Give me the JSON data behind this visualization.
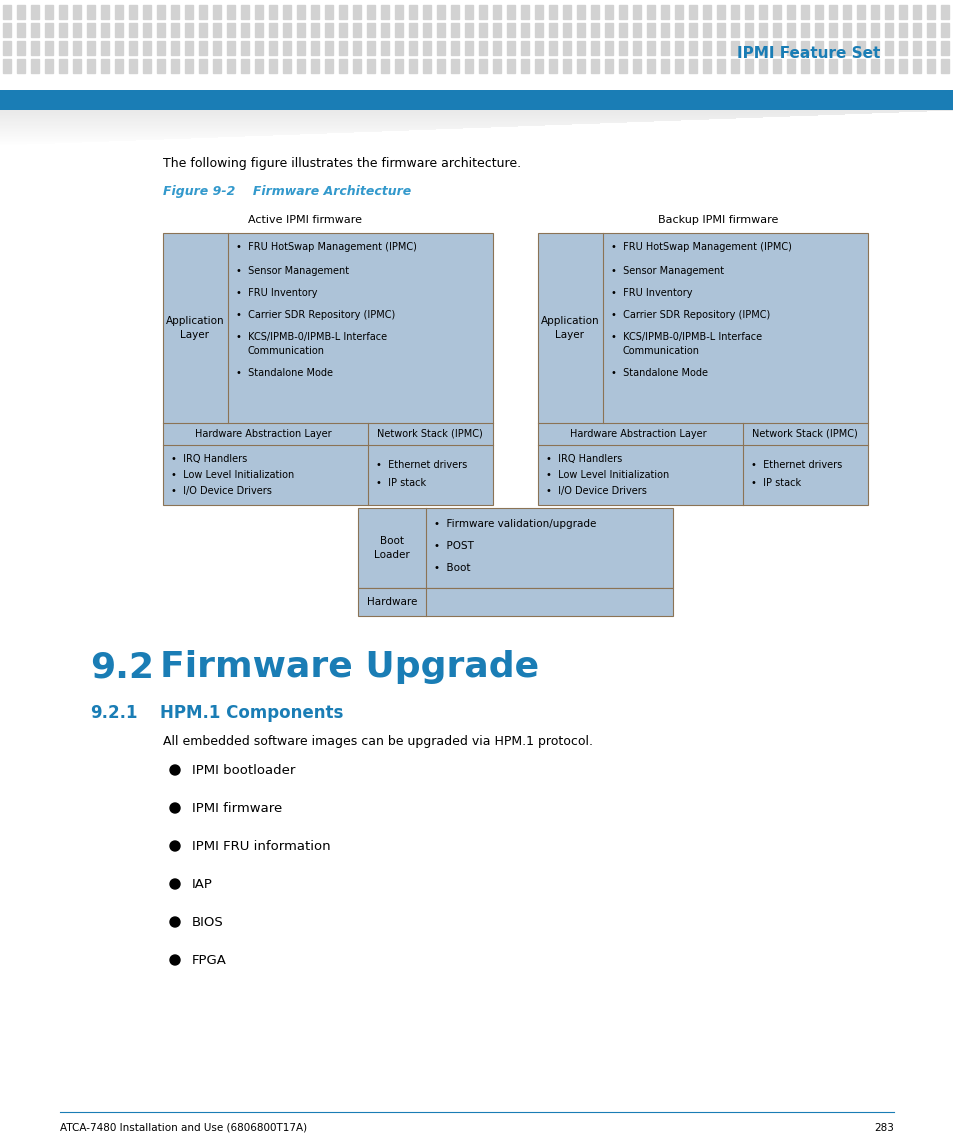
{
  "title_header": "IPMI Feature Set",
  "intro_text": "The following figure illustrates the firmware architecture.",
  "figure_caption": "Figure 9-2    Firmware Architecture",
  "app_layer_items_l1": "FRU HotSwap Management (IPMC)",
  "app_layer_items_l2": "Sensor Management",
  "app_layer_items_l3": "FRU Inventory",
  "app_layer_items_l4": "Carrier SDR Repository (IPMC)",
  "app_layer_items_l5a": "KCS/IPMB-0/IPMB-L Interface",
  "app_layer_items_l5b": "Communication",
  "app_layer_items_l6": "Standalone Mode",
  "hw_items": [
    "IRQ Handlers",
    "Low Level Initialization",
    "I/O Device Drivers"
  ],
  "net_items": [
    "Ethernet drivers",
    "IP stack"
  ],
  "boot_items": [
    "Firmware validation/upgrade",
    "POST",
    "Boot"
  ],
  "section_title": "9.2",
  "section_name": "Firmware Upgrade",
  "subsection_title": "9.2.1",
  "subsection_name": "HPM.1 Components",
  "subsection_text": "All embedded software images can be upgraded via HPM.1 protocol.",
  "bullet_items": [
    "IPMI bootloader",
    "IPMI firmware",
    "IPMI FRU information",
    "IAP",
    "BIOS",
    "FPGA"
  ],
  "footer_text": "ATCA-7480 Installation and Use (6806800T17A)",
  "footer_page": "283",
  "blue_color": "#1a7db5",
  "cyan_caption_color": "#3399cc",
  "box_bg": "#adc3d8",
  "box_border": "#8b7355",
  "stripe_color": "#d2d2d2",
  "bar_color": "#1a7db5",
  "white": "#ffffff",
  "black": "#000000"
}
